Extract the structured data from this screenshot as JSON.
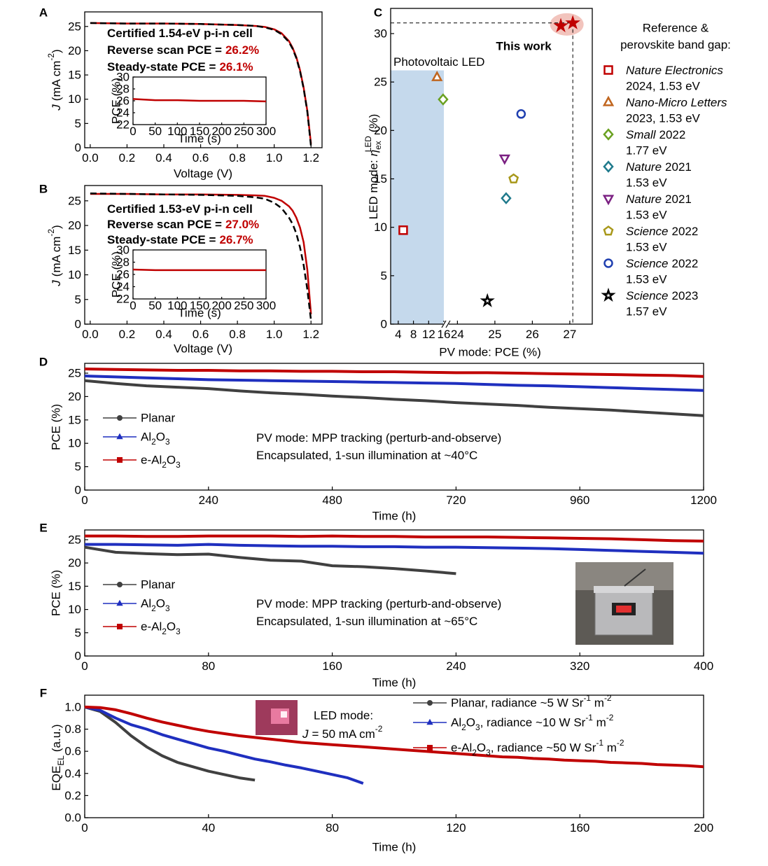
{
  "chart_data": [
    {
      "type": "line",
      "panel": "A",
      "x_label": "Voltage (V)",
      "y_label": [
        "J",
        "(mA cm-2)"
      ],
      "xlim": [
        -0.03,
        1.26
      ],
      "ylim": [
        0,
        28
      ],
      "xticks": [
        {
          "value": 0,
          "label": "0.0"
        },
        0.2,
        0.4,
        0.6,
        0.8,
        {
          "value": 1,
          "label": "1.0"
        },
        1.2
      ],
      "yticks": [
        0,
        5,
        10,
        15,
        20,
        25
      ],
      "x": [
        0,
        0.2,
        0.4,
        0.6,
        0.8,
        0.9,
        0.95,
        1.0,
        1.04,
        1.08,
        1.1,
        1.12,
        1.14,
        1.16,
        1.18,
        1.2
      ],
      "series": [
        {
          "color": "#c00000",
          "values": [
            25.7,
            25.6,
            25.6,
            25.5,
            25.3,
            25.1,
            24.9,
            24.4,
            23.6,
            22.0,
            20.6,
            18.7,
            16.0,
            12.4,
            7.6,
            0.8
          ]
        },
        {
          "color": "#000000",
          "dash": true,
          "values": [
            25.7,
            25.6,
            25.6,
            25.5,
            25.3,
            25.1,
            24.8,
            24.3,
            23.4,
            21.8,
            20.4,
            18.5,
            15.8,
            12.2,
            7.4,
            0.3
          ]
        }
      ],
      "annotations": [
        [
          "Certified 1.54-eV p-i-n cell"
        ],
        [
          "Reverse scan PCE =",
          "26.2%"
        ],
        [
          "Steady-state PCE =",
          "26.1%"
        ]
      ],
      "highlight_color": "#c00000",
      "inset": {
        "x_label": "Time (s)",
        "y_label": "PCE (%)",
        "xlim": [
          0,
          300
        ],
        "ylim": [
          22,
          30
        ],
        "xticks": [
          0,
          50,
          100,
          150,
          200,
          250,
          300
        ],
        "yticks": [
          22,
          24,
          26,
          28,
          30
        ],
        "x": [
          0,
          50,
          100,
          150,
          200,
          250,
          300
        ],
        "values": [
          26.3,
          26.1,
          26.1,
          26.0,
          26.0,
          26.0,
          25.9
        ],
        "color": "#c00000"
      }
    },
    {
      "type": "line",
      "panel": "B",
      "x_label": "Voltage (V)",
      "y_label": [
        "J",
        "(mA cm-2)"
      ],
      "xlim": [
        -0.03,
        1.26
      ],
      "ylim": [
        0,
        28.1
      ],
      "xticks": [
        {
          "value": 0,
          "label": "0.0"
        },
        0.2,
        0.4,
        0.6,
        0.8,
        {
          "value": 1,
          "label": "1.0"
        },
        1.2
      ],
      "yticks": [
        0,
        5,
        10,
        15,
        20,
        25
      ],
      "x": [
        0,
        0.2,
        0.4,
        0.6,
        0.8,
        0.9,
        0.95,
        1.0,
        1.04,
        1.08,
        1.1,
        1.12,
        1.14,
        1.16,
        1.18,
        1.2
      ],
      "series": [
        {
          "color": "#c00000",
          "values": [
            26.4,
            26.4,
            26.3,
            26.3,
            26.2,
            26.1,
            26.0,
            25.6,
            25.0,
            23.9,
            23.0,
            21.6,
            19.6,
            16.6,
            11.0,
            2.0
          ]
        },
        {
          "color": "#000000",
          "dash": true,
          "values": [
            26.5,
            26.4,
            26.3,
            26.2,
            26.0,
            25.7,
            25.4,
            24.6,
            23.5,
            21.6,
            20.3,
            18.4,
            15.6,
            12.0,
            7.0,
            0.8
          ]
        }
      ],
      "annotations": [
        [
          "Certified 1.53-eV p-i-n cell"
        ],
        [
          "Reverse scan PCE =",
          "27.0%"
        ],
        [
          "Steady-state PCE =",
          "26.7%"
        ]
      ],
      "highlight_color": "#c00000",
      "inset": {
        "x_label": "Time (s)",
        "y_label": "PCE (%)",
        "xlim": [
          0,
          300
        ],
        "ylim": [
          22,
          30
        ],
        "xticks": [
          0,
          50,
          100,
          150,
          200,
          250,
          300
        ],
        "yticks": [
          22,
          24,
          26,
          28,
          30
        ],
        "x": [
          0,
          50,
          100,
          150,
          200,
          250,
          300
        ],
        "values": [
          26.8,
          26.7,
          26.7,
          26.7,
          26.7,
          26.7,
          26.7
        ],
        "color": "#c00000"
      }
    },
    {
      "type": "scatter",
      "panel": "C",
      "x_label": "PV mode: PCE (%)",
      "y_label": [
        "LED mode:",
        "η",
        "ex",
        "LED",
        "(%)"
      ],
      "xlim": [
        2,
        27.6
      ],
      "x_break": [
        16,
        23.75
      ],
      "ylim": [
        0,
        32.6
      ],
      "xticks": [
        4,
        8,
        12,
        16,
        24,
        25,
        26,
        27
      ],
      "yticks": [
        0,
        5,
        10,
        15,
        20,
        25,
        30
      ],
      "shaded_region": {
        "label": "Photovoltaic LED",
        "x": [
          2,
          16
        ],
        "y": [
          0,
          26.2
        ],
        "color": "#c5d9ec"
      },
      "legend_title": [
        "Reference &",
        "perovskite band gap:"
      ],
      "series": [
        {
          "name": "Nature Electronics",
          "detail": "2024, 1.53 eV",
          "marker": "square",
          "color": "#c00000",
          "x": [
            5.3
          ],
          "values": [
            9.7
          ]
        },
        {
          "name": "Nano-Micro Letters",
          "detail": "2023, 1.53 eV",
          "marker": "triangle",
          "color": "#c0651e",
          "x": [
            14.2
          ],
          "values": [
            25.5
          ]
        },
        {
          "name": "Small",
          "suffix": "2022",
          "detail": "1.77 eV",
          "marker": "diamond",
          "color": "#6aa121",
          "x": [
            15.8
          ],
          "values": [
            23.2
          ]
        },
        {
          "name": "Nature",
          "suffix": "2021",
          "detail": "1.53 eV",
          "marker": "diamond",
          "color": "#1f7a8c",
          "x": [
            25.3
          ],
          "values": [
            13.0
          ]
        },
        {
          "name": "Nature",
          "suffix": "2021",
          "detail": "1.53 eV",
          "marker": "triangle-down",
          "color": "#7b2082",
          "x": [
            25.26
          ],
          "values": [
            17.1
          ]
        },
        {
          "name": "Science",
          "suffix": "2022",
          "detail": "1.53 eV",
          "marker": "pentagon",
          "color": "#a8981a",
          "x": [
            25.5
          ],
          "values": [
            15.0
          ]
        },
        {
          "name": "Science",
          "suffix": "2022",
          "detail": "1.53 eV",
          "marker": "circle",
          "color": "#1f3fb0",
          "x": [
            25.7
          ],
          "values": [
            21.7
          ]
        },
        {
          "name": "Science",
          "suffix": "2023",
          "detail": "1.57 eV",
          "marker": "star",
          "color": "#000000",
          "x": [
            24.8
          ],
          "values": [
            2.4
          ]
        },
        {
          "name": "This work",
          "marker": "star",
          "color": "#c00000",
          "filled": true,
          "x": [
            26.76,
            27.08
          ],
          "values": [
            30.8,
            31.1
          ]
        }
      ]
    },
    {
      "type": "line",
      "panel": "D",
      "x_label": "Time (h)",
      "y_label": "PCE (%)",
      "xlim": [
        0,
        1200
      ],
      "ylim": [
        0,
        27.1
      ],
      "xticks": [
        0,
        240,
        480,
        720,
        960,
        1200
      ],
      "yticks": [
        0,
        5,
        10,
        15,
        20,
        25
      ],
      "x": [
        0,
        60,
        120,
        180,
        240,
        300,
        360,
        420,
        480,
        540,
        600,
        660,
        720,
        780,
        840,
        900,
        960,
        1020,
        1080,
        1140,
        1200
      ],
      "series": [
        {
          "name": "Planar",
          "color": "#404040",
          "marker": "circle",
          "values": [
            23.4,
            22.8,
            22.3,
            22.0,
            21.7,
            21.2,
            20.8,
            20.5,
            20.1,
            19.8,
            19.4,
            19.1,
            18.7,
            18.4,
            18.1,
            17.7,
            17.4,
            17.1,
            16.7,
            16.3,
            15.9
          ]
        },
        {
          "name": "Al2O3",
          "color": "#1f2fbf",
          "marker": "triangle",
          "values": [
            24.4,
            24.2,
            24.0,
            23.8,
            23.6,
            23.5,
            23.4,
            23.3,
            23.2,
            23.1,
            23.0,
            22.9,
            22.8,
            22.6,
            22.4,
            22.3,
            22.1,
            21.9,
            21.7,
            21.5,
            21.3
          ]
        },
        {
          "name": "e-Al2O3",
          "color": "#c00000",
          "marker": "square",
          "values": [
            25.9,
            25.8,
            25.7,
            25.6,
            25.6,
            25.5,
            25.5,
            25.4,
            25.4,
            25.3,
            25.3,
            25.2,
            25.1,
            25.1,
            25.0,
            24.9,
            24.8,
            24.7,
            24.6,
            24.5,
            24.3
          ]
        }
      ],
      "annotations": [
        [
          "PV mode: MPP tracking (perturb-and-observe)"
        ],
        [
          "Encapsulated, 1-sun illumination at ~40°C"
        ]
      ]
    },
    {
      "type": "line",
      "panel": "E",
      "x_label": "Time (h)",
      "y_label": "PCE (%)",
      "xlim": [
        0,
        400
      ],
      "ylim": [
        0,
        27.1
      ],
      "xticks": [
        0,
        80,
        160,
        240,
        320,
        400
      ],
      "yticks": [
        0,
        5,
        10,
        15,
        20,
        25
      ],
      "x": [
        0,
        20,
        40,
        60,
        80,
        100,
        120,
        140,
        160,
        180,
        200,
        220,
        240,
        260,
        280,
        300,
        320,
        340,
        360,
        380,
        400
      ],
      "series": [
        {
          "name": "Planar",
          "color": "#404040",
          "marker": "circle",
          "values": [
            23.4,
            22.3,
            22.0,
            21.8,
            21.9,
            21.2,
            20.6,
            20.4,
            19.4,
            19.2,
            18.8,
            18.3,
            17.7,
            null,
            null,
            null,
            null,
            null,
            null,
            null,
            null
          ]
        },
        {
          "name": "Al2O3",
          "color": "#1f2fbf",
          "marker": "triangle",
          "values": [
            24.0,
            24.0,
            23.9,
            23.8,
            24.0,
            23.8,
            23.7,
            23.6,
            23.6,
            23.5,
            23.5,
            23.4,
            23.4,
            23.3,
            23.2,
            23.1,
            22.9,
            22.7,
            22.5,
            22.3,
            22.1
          ]
        },
        {
          "name": "e-Al2O3",
          "color": "#c00000",
          "marker": "square",
          "values": [
            25.8,
            25.8,
            25.7,
            25.7,
            25.8,
            25.8,
            25.8,
            25.7,
            25.8,
            25.7,
            25.7,
            25.6,
            25.6,
            25.6,
            25.5,
            25.4,
            25.3,
            25.2,
            25.0,
            24.8,
            24.7
          ]
        }
      ],
      "annotations": [
        [
          "PV mode: MPP tracking (perturb-and-observe)"
        ],
        [
          "Encapsulated, 1-sun illumination at ~65°C"
        ]
      ]
    },
    {
      "type": "line",
      "panel": "F",
      "x_label": "Time (h)",
      "y_label": [
        "EQE",
        "EL",
        "(a.u.)"
      ],
      "xlim": [
        0,
        200
      ],
      "ylim": [
        0,
        1.107
      ],
      "xticks": [
        0,
        40,
        80,
        120,
        160,
        200
      ],
      "yticks": [
        {
          "value": 0,
          "label": "0.0"
        },
        0.2,
        0.4,
        0.6,
        0.8,
        {
          "value": 1,
          "label": "1.0"
        }
      ],
      "x": [
        0,
        5,
        10,
        15,
        20,
        25,
        30,
        35,
        40,
        45,
        50,
        55,
        60,
        65,
        70,
        75,
        80,
        85,
        90,
        95,
        100,
        105,
        110,
        115,
        120,
        125,
        130,
        135,
        140,
        145,
        150,
        155,
        160,
        165,
        170,
        175,
        180,
        185,
        190,
        195,
        200
      ],
      "series": [
        {
          "name": "Planar, radiance ~5 W Sr-1 m-2",
          "color": "#404040",
          "marker": "circle",
          "values": [
            1,
            0.96,
            0.86,
            0.74,
            0.64,
            0.56,
            0.5,
            0.46,
            0.42,
            0.39,
            0.36,
            0.34,
            null,
            null,
            null,
            null,
            null,
            null,
            null,
            null,
            null,
            null,
            null,
            null,
            null,
            null,
            null,
            null,
            null,
            null,
            null,
            null,
            null,
            null,
            null,
            null,
            null,
            null,
            null,
            null,
            null
          ]
        },
        {
          "name": "Al2O3, radiance ~10 W Sr-1 m-2",
          "color": "#1f2fbf",
          "marker": "triangle",
          "values": [
            1,
            0.97,
            0.9,
            0.84,
            0.8,
            0.75,
            0.71,
            0.67,
            0.63,
            0.6,
            0.565,
            0.53,
            0.505,
            0.475,
            0.45,
            0.42,
            0.39,
            0.36,
            0.31,
            null,
            null,
            null,
            null,
            null,
            null,
            null,
            null,
            null,
            null,
            null,
            null,
            null,
            null,
            null,
            null,
            null,
            null,
            null,
            null,
            null,
            null
          ]
        },
        {
          "name": "e-Al2O3, radiance ~50 W Sr-1 m-2",
          "color": "#c00000",
          "marker": "square",
          "values": [
            1,
            0.995,
            0.975,
            0.94,
            0.9,
            0.865,
            0.835,
            0.805,
            0.78,
            0.76,
            0.74,
            0.725,
            0.71,
            0.695,
            0.68,
            0.67,
            0.66,
            0.65,
            0.64,
            0.63,
            0.62,
            0.61,
            0.6,
            0.59,
            0.58,
            0.57,
            0.56,
            0.55,
            0.545,
            0.535,
            0.53,
            0.52,
            0.515,
            0.51,
            0.5,
            0.495,
            0.49,
            0.48,
            0.475,
            0.47,
            0.46
          ]
        }
      ],
      "led_note": [
        "LED mode:",
        "J",
        "= 50 mA cm-2"
      ]
    }
  ]
}
